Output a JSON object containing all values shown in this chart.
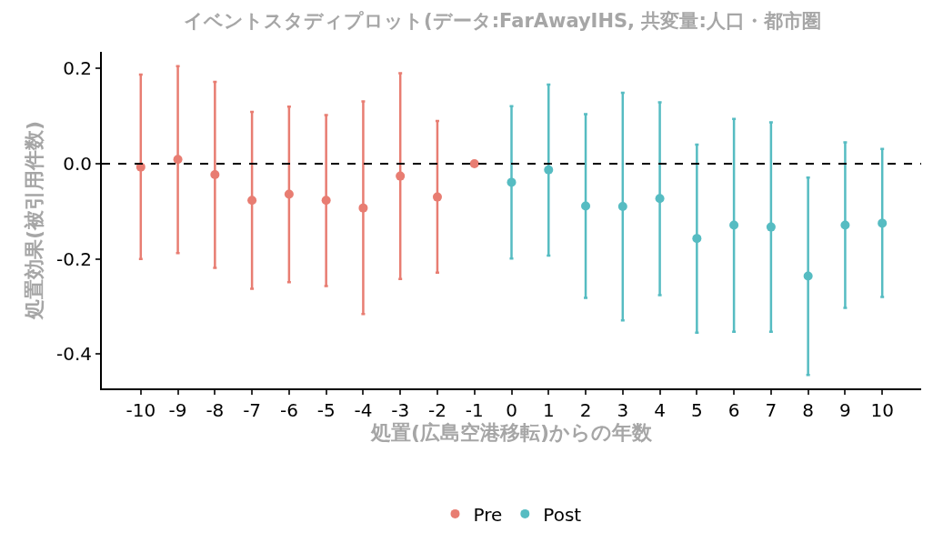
{
  "chart_data": {
    "type": "scatter",
    "title": "イベントスタディプロット(データ:FarAwayIHS, 共変量:人口・都市圏",
    "xlabel": "処置(広島空港移転)からの年数",
    "ylabel": "処置効果(被引用件数)",
    "series": [
      {
        "name": "Pre",
        "color": "#e87d72",
        "x": [
          -10,
          -9,
          -8,
          -7,
          -6,
          -5,
          -4,
          -3,
          -2,
          -1
        ],
        "values": [
          -0.007,
          0.009,
          -0.023,
          -0.077,
          -0.064,
          -0.077,
          -0.093,
          -0.026,
          -0.07,
          0
        ],
        "errors": [
          [
            -0.2,
            0.187
          ],
          [
            -0.188,
            0.205
          ],
          [
            -0.219,
            0.172
          ],
          [
            -0.263,
            0.109
          ],
          [
            -0.249,
            0.12
          ],
          [
            -0.257,
            0.102
          ],
          [
            -0.316,
            0.131
          ],
          [
            -0.242,
            0.19
          ],
          [
            -0.229,
            0.09
          ],
          null
        ]
      },
      {
        "name": "Post",
        "color": "#56bcc2",
        "x": [
          0,
          1,
          2,
          3,
          4,
          5,
          6,
          7,
          8,
          9,
          10
        ],
        "values": [
          -0.039,
          -0.013,
          -0.089,
          -0.09,
          -0.073,
          -0.157,
          -0.129,
          -0.133,
          -0.236,
          -0.129,
          -0.125
        ],
        "errors": [
          [
            -0.199,
            0.121
          ],
          [
            -0.193,
            0.166
          ],
          [
            -0.282,
            0.104
          ],
          [
            -0.329,
            0.149
          ],
          [
            -0.276,
            0.129
          ],
          [
            -0.355,
            0.04
          ],
          [
            -0.353,
            0.094
          ],
          [
            -0.353,
            0.087
          ],
          [
            -0.444,
            -0.029
          ],
          [
            -0.303,
            0.045
          ],
          [
            -0.28,
            0.031
          ]
        ]
      }
    ],
    "xlim": [
      -11.05,
      11.05
    ],
    "xticks": [
      -10,
      -9,
      -8,
      -7,
      -6,
      -5,
      -4,
      -3,
      -2,
      -1,
      0,
      1,
      2,
      3,
      4,
      5,
      6,
      7,
      8,
      9,
      10
    ],
    "ylim": [
      -0.472,
      0.235
    ],
    "yticks": [
      -0.4,
      -0.2,
      {
        "value": 0,
        "label": "0.0"
      },
      0.2
    ],
    "ref_lines": [
      {
        "axis": "y",
        "value": 0,
        "color": "#000000",
        "line_style": "dashed"
      }
    ],
    "grid": false,
    "legend": "bottom",
    "marker": "circle"
  }
}
